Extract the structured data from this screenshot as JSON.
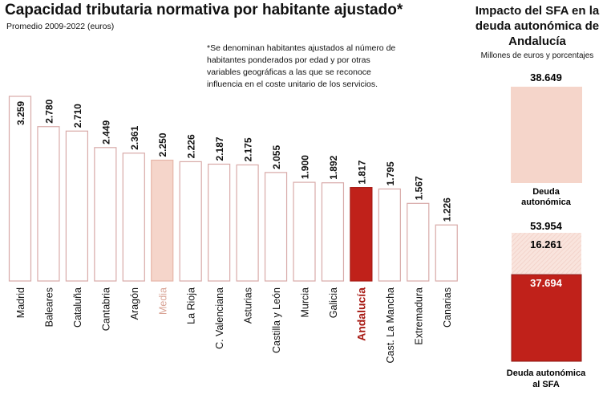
{
  "chart_data": [
    {
      "type": "bar",
      "title": "Capacidad tributaria normativa por habitante ajustado*",
      "subtitle": "Promedio 2009-2022 (euros)",
      "note": "*Se denominan habitantes ajustados al número de habitantes ponderados por edad y por otras variables geográficas a las que se reconoce influencia en el coste unitario de los servicios.",
      "categories": [
        "Madrid",
        "Baleares",
        "Cataluña",
        "Cantabria",
        "Aragón",
        "Media",
        "La Rioja",
        "C. Valenciana",
        "Asturias",
        "Castilla y León",
        "Murcia",
        "Galicia",
        "Andalucía",
        "Cast. La Mancha",
        "Extremadura",
        "Canarias"
      ],
      "values": [
        3259,
        2780,
        2710,
        2449,
        2361,
        2250,
        2226,
        2187,
        2175,
        2055,
        1900,
        1892,
        1817,
        1795,
        1567,
        1226
      ],
      "labels": [
        "3.259",
        "2.780",
        "2.710",
        "2.449",
        "2.361",
        "2.250",
        "2.226",
        "2.187",
        "2.175",
        "2.055",
        "1.900",
        "1.892",
        "1.817",
        "1.795",
        "1.567",
        "1.226"
      ],
      "highlight": {
        "Media": "#f5d5ca",
        "Andalucía": "#c0211a"
      },
      "ylim": [
        340,
        3259
      ],
      "grid": false
    },
    {
      "type": "bar",
      "title": "Impacto del SFA en la deuda autonómica de Andalucía",
      "subtitle": "Millones de euros y porcentajes",
      "bars": [
        {
          "category": "Deuda autonómica",
          "total": 38649,
          "total_label": "38.649",
          "segments": [
            {
              "value": 38649,
              "color": "#f5d5ca"
            }
          ]
        },
        {
          "category": "Deuda autonómica al SFA",
          "total": 53954,
          "total_label": "53.954",
          "segments": [
            {
              "value": 37694,
              "label": "37.694",
              "color": "#c0211a"
            },
            {
              "value": 16261,
              "label": "16.261",
              "color": "#f9e4dd"
            }
          ]
        }
      ]
    }
  ],
  "colors": {
    "outline": "#d8aaa8",
    "accent": "#c0211a",
    "light": "#f5d5ca"
  }
}
